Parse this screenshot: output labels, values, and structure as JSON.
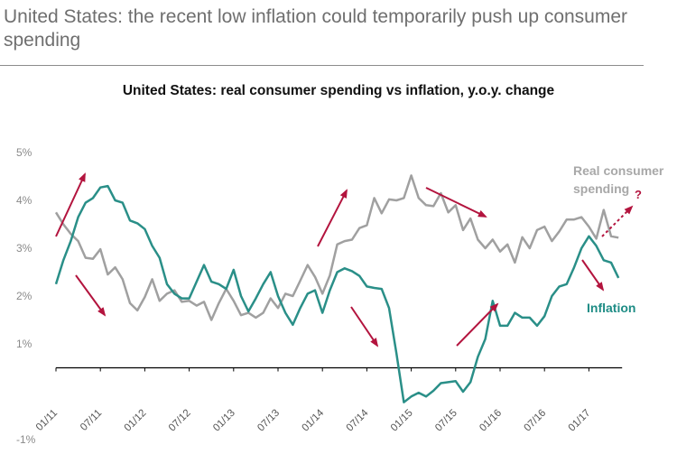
{
  "page": {
    "title": "United States: the recent low inflation could temporarily push up consumer spending"
  },
  "colors": {
    "spending": "#a0a0a0",
    "inflation": "#2a8f88",
    "arrow": "#b3143e",
    "axis": "#000000"
  },
  "chart_data": {
    "type": "line",
    "title": "United States: real consumer spending vs inflation, y.o.y. change",
    "ylim": [
      -1,
      5
    ],
    "yticks": [
      -1,
      1,
      2,
      3,
      4,
      5
    ],
    "ytick_labels": [
      "-1%",
      "1%",
      "2%",
      "3%",
      "4%",
      "5%"
    ],
    "x_tick_labels": [
      "01/11",
      "07/11",
      "01/12",
      "07/12",
      "01/13",
      "07/13",
      "01/14",
      "07/14",
      "01/15",
      "07/15",
      "01/16",
      "07/16",
      "01/17"
    ],
    "x_start": "01/11",
    "x_step_months": 1,
    "series": [
      {
        "name": "Real consumer spending",
        "legend": "Real consumer spending",
        "color": "#a0a0a0",
        "values": [
          3.75,
          3.5,
          3.3,
          3.15,
          2.8,
          2.78,
          2.98,
          2.45,
          2.6,
          2.35,
          1.85,
          1.7,
          1.98,
          2.35,
          1.9,
          2.05,
          2.12,
          1.88,
          1.9,
          1.8,
          1.88,
          1.5,
          1.85,
          2.15,
          1.9,
          1.6,
          1.65,
          1.55,
          1.65,
          1.95,
          1.75,
          2.05,
          2.0,
          2.32,
          2.65,
          2.4,
          2.05,
          2.43,
          3.08,
          3.15,
          3.18,
          3.42,
          3.48,
          4.05,
          3.73,
          4.02,
          4.0,
          4.05,
          4.52,
          4.05,
          3.9,
          3.88,
          4.15,
          3.75,
          3.9,
          3.38,
          3.62,
          3.18,
          3.0,
          3.18,
          2.93,
          3.08,
          2.7,
          3.23,
          3.0,
          3.38,
          3.45,
          3.15,
          3.35,
          3.6,
          3.6,
          3.65,
          3.45,
          3.2,
          3.8,
          3.25,
          3.22
        ]
      },
      {
        "name": "Inflation",
        "legend": "Inflation",
        "color": "#2a8f88",
        "values": [
          2.25,
          2.75,
          3.15,
          3.65,
          3.95,
          4.05,
          4.27,
          4.3,
          4.0,
          3.95,
          3.58,
          3.52,
          3.4,
          3.05,
          2.8,
          2.25,
          2.05,
          1.95,
          1.95,
          2.3,
          2.65,
          2.3,
          2.25,
          2.15,
          2.55,
          2.0,
          1.68,
          1.95,
          2.25,
          2.5,
          2.0,
          1.65,
          1.4,
          1.75,
          2.05,
          2.12,
          1.65,
          2.12,
          2.5,
          2.58,
          2.52,
          2.42,
          2.2,
          2.17,
          2.15,
          1.75,
          0.8,
          -0.22,
          -0.1,
          -0.02,
          -0.1,
          0.02,
          0.18,
          0.2,
          0.22,
          0.0,
          0.2,
          0.73,
          1.1,
          1.9,
          1.38,
          1.38,
          1.65,
          1.55,
          1.55,
          1.38,
          1.58,
          2.0,
          2.2,
          2.25,
          2.6,
          3.0,
          3.25,
          3.05,
          2.75,
          2.7,
          2.38
        ]
      }
    ],
    "annotations": [
      {
        "type": "arrow",
        "direction": "up"
      },
      {
        "type": "arrow",
        "direction": "down"
      },
      {
        "type": "arrow",
        "direction": "up"
      },
      {
        "type": "arrow",
        "direction": "down"
      },
      {
        "type": "arrow",
        "direction": "down"
      },
      {
        "type": "arrow",
        "direction": "up"
      },
      {
        "type": "arrow",
        "direction": "down"
      },
      {
        "type": "arrow",
        "direction": "up",
        "style": "dashed",
        "label": "?"
      }
    ]
  }
}
